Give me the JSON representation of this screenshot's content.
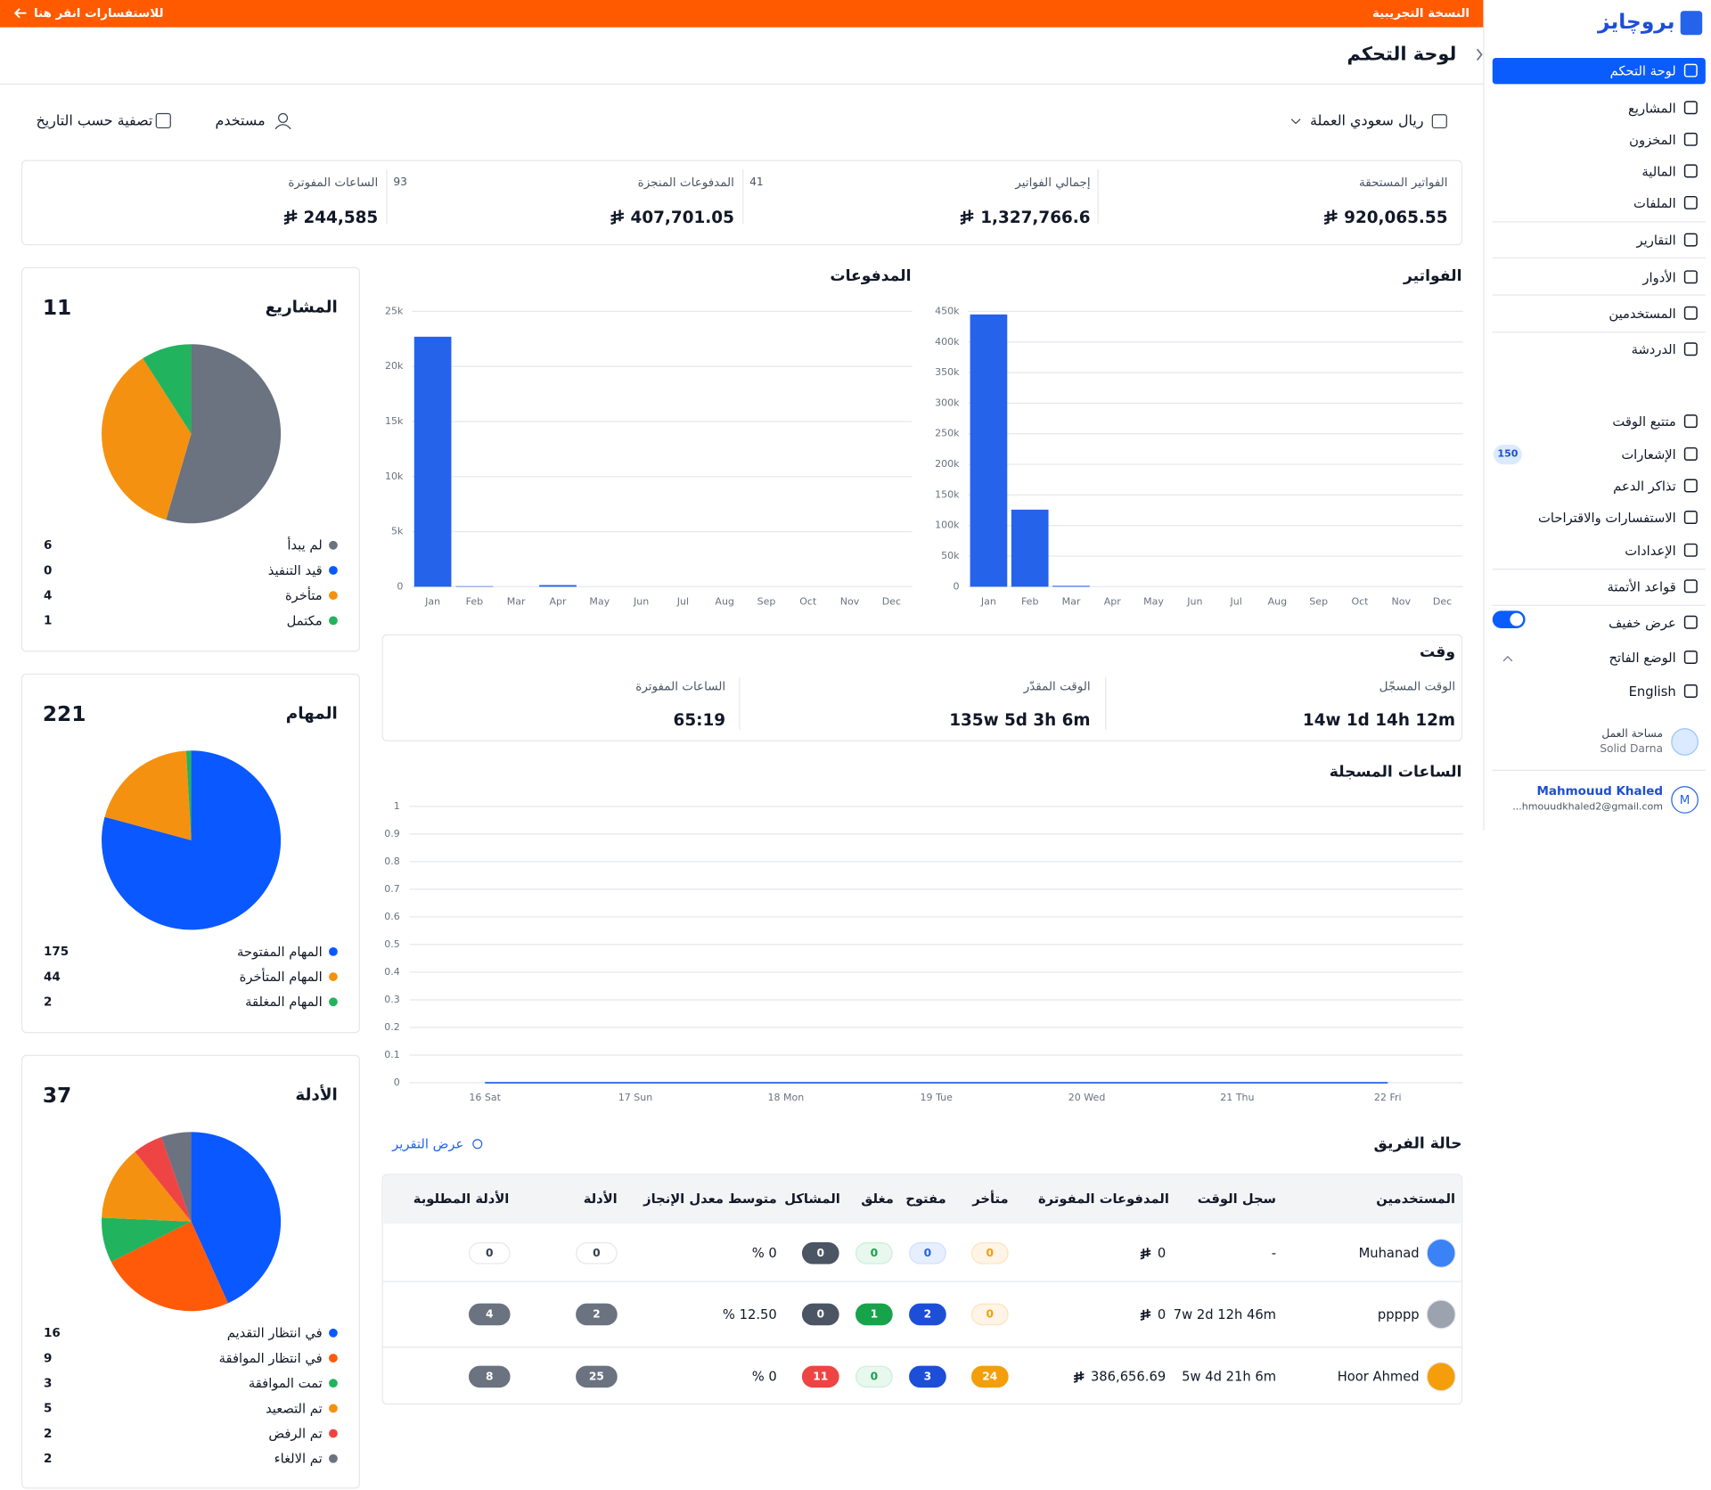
{
  "banner": {
    "notice": "للاستفسارات انقر هنا",
    "version": "النسخة التجريبية"
  },
  "sidebar": {
    "brand": "بروچايز",
    "items": [
      "لوحة التحكم",
      "المشاريع",
      "المخزون",
      "المالية",
      "الملفات",
      "التقارير",
      "الأدوار",
      "المستخدمين",
      "الدردشة",
      "متتبع الوقت",
      "الإشعارات",
      "تذاكر الدعم",
      "الاستفسارات والاقتراحات",
      "الإعدادات",
      "قواعد الأتمتة",
      "عرض خفيف",
      "الوضع الفاتح",
      "English"
    ],
    "notifications_count": 150,
    "workspace": {
      "label": "مساحة العمل",
      "name": "Solid Darna"
    },
    "user": {
      "initial": "M",
      "name": "Mahmouud Khaled",
      "email": "...hmouudkhaled2@gmail.com"
    }
  },
  "header": {
    "title": "لوحة التحكم"
  },
  "filters": {
    "currency": "ريال سعودي العملة",
    "user": "مستخدم",
    "date": "تصفية حسب التاريخ"
  },
  "stats": [
    {
      "label": "الفواتير المستحقة",
      "value": "920,065.55"
    },
    {
      "label": "إجمالي الفواتير",
      "value": "1,327,766.6",
      "count": 41
    },
    {
      "label": "المدفوعات المنجزة",
      "value": "407,701.05",
      "count": 93
    },
    {
      "label": "الساعات المفوترة",
      "value": "244,585"
    }
  ],
  "time": {
    "title": "وقت",
    "items": [
      {
        "label": "الوقت المسجّل",
        "value": "14w 1d 14h 12m"
      },
      {
        "label": "الوقت المقدّر",
        "value": "135w 5d 3h 6m"
      },
      {
        "label": "الساعات المفوترة",
        "value": "65:19"
      }
    ]
  },
  "team": {
    "title": "حالة الفريق",
    "report_link": "عرض التقرير",
    "columns": [
      "المستخدمين",
      "سجل الوقت",
      "المدفوعات المفوترة",
      "متأخر",
      "مفتوح",
      "مغلق",
      "المشاكل",
      "متوسط معدل الإنجاز",
      "الأدلة",
      "الأدلة المطلوبة"
    ],
    "rows": [
      [
        "Muhanad",
        "-",
        "0",
        "0",
        "0",
        "0",
        "0",
        "0 %",
        "0",
        "0"
      ],
      [
        "ppppp",
        "7w 2d 12h 46m",
        "0",
        "0",
        "2",
        "1",
        "0",
        "12.50 %",
        "2",
        "4"
      ],
      [
        "Hoor Ahmed",
        "5w 4d 21h 6m",
        "386,656.69",
        "24",
        "3",
        "0",
        "11",
        "0 %",
        "25",
        "8"
      ]
    ]
  },
  "chart_data": [
    {
      "type": "pie",
      "title": "المشاريع",
      "total": 11,
      "categories": [
        "لم يبدأ",
        "قيد التنفيذ",
        "متأخرة",
        "مكتمل"
      ],
      "values": [
        6,
        0,
        4,
        1
      ],
      "colors": [
        "#6b7280",
        "#0a58ff",
        "#f59110",
        "#22b35e"
      ]
    },
    {
      "type": "pie",
      "title": "المهام",
      "total": 221,
      "categories": [
        "المهام المفتوحة",
        "المهام المتأخرة",
        "المهام المغلقة"
      ],
      "values": [
        175,
        44,
        2
      ],
      "colors": [
        "#0a58ff",
        "#f59110",
        "#22b35e"
      ]
    },
    {
      "type": "pie",
      "title": "الأدلة",
      "total": 37,
      "categories": [
        "في انتظار التقديم",
        "في انتظار الموافقة",
        "تمت الموافقة",
        "تم التصعيد",
        "تم الرفض",
        "تم الالغاء"
      ],
      "values": [
        16,
        9,
        3,
        5,
        2,
        2
      ],
      "colors": [
        "#0a58ff",
        "#ff5a0a",
        "#22b35e",
        "#f59110",
        "#ef4444",
        "#6b7280"
      ]
    },
    {
      "type": "bar",
      "title": "الفواتير",
      "categories": [
        "Jan",
        "Feb",
        "Mar",
        "Apr",
        "May",
        "Jun",
        "Jul",
        "Aug",
        "Sep",
        "Oct",
        "Nov",
        "Dec"
      ],
      "values": [
        445000,
        126000,
        1500,
        0,
        0,
        0,
        0,
        0,
        0,
        0,
        0,
        0
      ],
      "color": "#2563eb",
      "ylim": [
        0,
        450000
      ],
      "yticks": [
        0,
        {
          "value": 50000,
          "label": "50k"
        },
        {
          "value": 100000,
          "label": "100k"
        },
        {
          "value": 150000,
          "label": "150k"
        },
        {
          "value": 200000,
          "label": "200k"
        },
        {
          "value": 250000,
          "label": "250k"
        },
        {
          "value": 300000,
          "label": "300k"
        },
        {
          "value": 350000,
          "label": "350k"
        },
        {
          "value": 400000,
          "label": "400k"
        },
        {
          "value": 450000,
          "label": "450k"
        }
      ],
      "grid": true
    },
    {
      "type": "bar",
      "title": "المدفوعات",
      "categories": [
        "Jan",
        "Feb",
        "Mar",
        "Apr",
        "May",
        "Jun",
        "Jul",
        "Aug",
        "Sep",
        "Oct",
        "Nov",
        "Dec"
      ],
      "values": [
        22700,
        50,
        0,
        150,
        0,
        0,
        0,
        0,
        0,
        0,
        0,
        0
      ],
      "color": "#2563eb",
      "ylim": [
        0,
        25000
      ],
      "yticks": [
        0,
        {
          "value": 5000,
          "label": "5k"
        },
        {
          "value": 10000,
          "label": "10k"
        },
        {
          "value": 15000,
          "label": "15k"
        },
        {
          "value": 20000,
          "label": "20k"
        },
        {
          "value": 25000,
          "label": "25k"
        }
      ],
      "grid": true
    },
    {
      "type": "line",
      "title": "الساعات المسجلة",
      "categories": [
        "16 Sat",
        "17 Sun",
        "18 Mon",
        "19 Tue",
        "20 Wed",
        "21 Thu",
        "22 Fri"
      ],
      "values": [
        0,
        0,
        0,
        0,
        0,
        0,
        0
      ],
      "color": "#2563eb",
      "ylim": [
        0,
        1
      ],
      "yticks": [
        0,
        0.1,
        0.2,
        0.3,
        0.4,
        0.5,
        0.6,
        0.7,
        0.8,
        0.9,
        1
      ],
      "grid": true
    }
  ]
}
